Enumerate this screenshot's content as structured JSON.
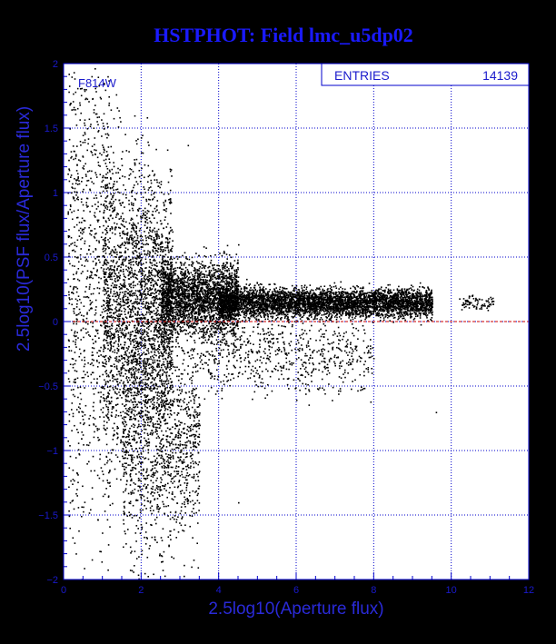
{
  "chart_data": {
    "type": "scatter",
    "title": "HSTPHOT: Field lmc_u5dp02",
    "xlabel": "2.5log10(Aperture flux)",
    "ylabel": "2.5log10(PSF flux/Aperture flux)",
    "xlim": [
      0,
      12
    ],
    "ylim": [
      -2,
      2
    ],
    "xticks": [
      0,
      2,
      4,
      6,
      8,
      10,
      12
    ],
    "yticks": [
      -2,
      -1.5,
      -1,
      -0.5,
      0,
      0.5,
      1,
      1.5,
      2
    ],
    "xtick_labels": [
      "0",
      "2",
      "4",
      "6",
      "8",
      "10",
      "12"
    ],
    "ytick_labels": [
      "−2",
      "−1.5",
      "−1",
      "−0.5",
      "0",
      "0.5",
      "1",
      "1.5",
      "2"
    ],
    "grid": true,
    "annotation": "F814W",
    "stats_box": {
      "label": "ENTRIES",
      "value": "14139"
    },
    "reference_line": {
      "y": 0,
      "color": "#cc0000",
      "style": "dashed"
    },
    "colors": {
      "background": "#ffffff",
      "frame": "#0000cc",
      "grid": "#0000cc",
      "points": "#000000",
      "title": "#1a1aff"
    },
    "points_sample": [
      [
        0.2,
        1.9
      ],
      [
        0.4,
        1.7
      ],
      [
        0.6,
        1.5
      ],
      [
        0.8,
        1.3
      ],
      [
        1.0,
        1.1
      ],
      [
        1.2,
        0.9
      ],
      [
        1.5,
        0.7
      ],
      [
        2.0,
        0.5
      ],
      [
        2.5,
        0.35
      ],
      [
        3.0,
        0.3
      ],
      [
        4.0,
        0.22
      ],
      [
        5.0,
        0.18
      ],
      [
        6.0,
        0.17
      ],
      [
        7.0,
        0.16
      ],
      [
        8.0,
        0.15
      ],
      [
        9.0,
        0.14
      ],
      [
        9.5,
        0.14
      ],
      [
        10.5,
        0.15
      ],
      [
        11.0,
        0.14
      ],
      [
        1.0,
        -0.5
      ],
      [
        1.5,
        -1.0
      ],
      [
        1.8,
        -1.5
      ],
      [
        2.0,
        -1.8
      ],
      [
        2.5,
        -1.0
      ],
      [
        3.0,
        -0.6
      ],
      [
        3.5,
        -0.8
      ],
      [
        4.5,
        -1.4
      ],
      [
        5.0,
        -0.4
      ],
      [
        9.6,
        -0.7
      ],
      [
        3.2,
        1.37
      ],
      [
        4.5,
        0.6
      ]
    ],
    "density_regions": [
      {
        "x_range": [
          4,
          9.5
        ],
        "center": 0.15,
        "width": 0.08,
        "weight": 4500
      },
      {
        "x_range": [
          2.5,
          4.5
        ],
        "center": 0.18,
        "width": 0.2,
        "weight": 2600
      },
      {
        "x_range": [
          1,
          2.8
        ],
        "center": 0.1,
        "width": 0.6,
        "weight": 2600
      },
      {
        "x_range": [
          0.1,
          1.2
        ],
        "center": 0.4,
        "width": 0.9,
        "weight": 900
      },
      {
        "x_range": [
          1.5,
          3.5
        ],
        "center": -0.9,
        "width": 0.55,
        "weight": 1300
      },
      {
        "x_range": [
          3.5,
          8
        ],
        "center": -0.25,
        "width": 0.22,
        "weight": 700
      },
      {
        "x_range": [
          10.2,
          11.1
        ],
        "center": 0.15,
        "width": 0.04,
        "weight": 80
      }
    ]
  }
}
